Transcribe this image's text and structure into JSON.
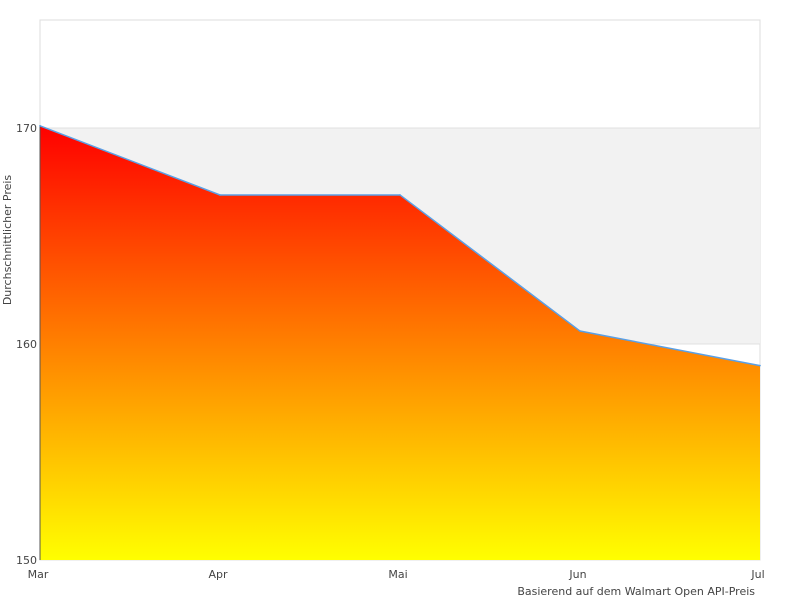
{
  "chart_data": {
    "type": "area",
    "title": "",
    "xlabel": "Basierend auf dem Walmart Open API-Preis",
    "ylabel": "Durchschnittlicher Preis",
    "categories": [
      "Mar",
      "Apr",
      "Mai",
      "Jun",
      "Jul"
    ],
    "values": [
      170.1,
      166.9,
      166.9,
      160.6,
      159.0
    ],
    "ylim": [
      150,
      175
    ],
    "yticks": [
      150,
      160,
      170
    ],
    "grid": true,
    "band": [
      160,
      170
    ],
    "colors": {
      "line": "#5aa0e6",
      "fill_top": "#ff0000",
      "fill_bottom": "#ffff00",
      "band": "#f2f2f2",
      "border": "#dddddd"
    }
  }
}
